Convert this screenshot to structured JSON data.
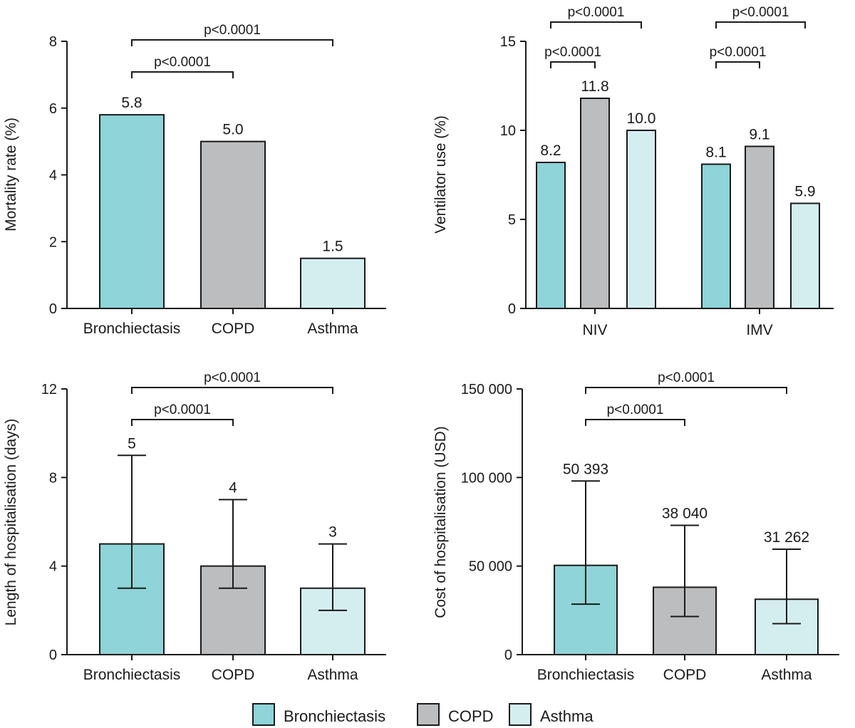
{
  "colors": {
    "Bronchiectasis": "#8ed4d8",
    "COPD": "#bcbdbf",
    "Asthma": "#d4eef0",
    "axis": "#1a1a1a"
  },
  "legend": {
    "position": "bottom-center",
    "items": [
      {
        "label": "Bronchiectasis",
        "color": "#8ed4d8"
      },
      {
        "label": "COPD",
        "color": "#bcbdbf"
      },
      {
        "label": "Asthma",
        "color": "#d4eef0"
      }
    ]
  },
  "chart_data": [
    {
      "id": "mortality",
      "type": "bar",
      "ylabel": "Mortality rate (%)",
      "ylim": [
        0,
        8
      ],
      "yticks": [
        0,
        2,
        4,
        6,
        8
      ],
      "yticklabels": [
        "0",
        "2",
        "4",
        "6",
        "8"
      ],
      "categories": [
        "Bronchiectasis",
        "COPD",
        "Asthma"
      ],
      "values": [
        5.8,
        5.0,
        1.5
      ],
      "value_labels": [
        "5.8",
        "5.0",
        "1.5"
      ],
      "significance": [
        {
          "from": 0,
          "to": 1,
          "label": "p<0.0001"
        },
        {
          "from": 0,
          "to": 2,
          "label": "p<0.0001"
        }
      ]
    },
    {
      "id": "ventilator",
      "type": "bar",
      "ylabel": "Ventilator use (%)",
      "ylim": [
        0,
        15
      ],
      "yticks": [
        0,
        5,
        10,
        15
      ],
      "yticklabels": [
        "0",
        "5",
        "10",
        "15"
      ],
      "categories": [
        "NIV",
        "IMV"
      ],
      "series": [
        {
          "name": "Bronchiectasis",
          "values": [
            8.2,
            8.1
          ],
          "labels": [
            "8.2",
            "8.1"
          ]
        },
        {
          "name": "COPD",
          "values": [
            11.8,
            9.1
          ],
          "labels": [
            "11.8",
            "9.1"
          ]
        },
        {
          "name": "Asthma",
          "values": [
            10.0,
            5.9
          ],
          "labels": [
            "10.0",
            "5.9"
          ]
        }
      ],
      "significance": [
        {
          "group": 0,
          "from": 0,
          "to": 1,
          "label": "p<0.0001"
        },
        {
          "group": 0,
          "from": 0,
          "to": 2,
          "label": "p<0.0001"
        },
        {
          "group": 1,
          "from": 0,
          "to": 1,
          "label": "p<0.0001"
        },
        {
          "group": 1,
          "from": 0,
          "to": 2,
          "label": "p<0.0001"
        }
      ]
    },
    {
      "id": "length",
      "type": "bar",
      "ylabel": "Length of hospitalisation (days)",
      "ylim": [
        0,
        12
      ],
      "yticks": [
        0,
        4,
        8,
        12
      ],
      "yticklabels": [
        "0",
        "4",
        "8",
        "12"
      ],
      "categories": [
        "Bronchiectasis",
        "COPD",
        "Asthma"
      ],
      "values": [
        5,
        4,
        3
      ],
      "value_labels": [
        "5",
        "4",
        "3"
      ],
      "error_bars": [
        [
          3,
          9
        ],
        [
          3,
          7
        ],
        [
          2,
          5
        ]
      ],
      "significance": [
        {
          "from": 0,
          "to": 1,
          "label": "p<0.0001"
        },
        {
          "from": 0,
          "to": 2,
          "label": "p<0.0001"
        }
      ]
    },
    {
      "id": "cost",
      "type": "bar",
      "ylabel": "Cost of hospitalisation (USD)",
      "ylim": [
        0,
        150000
      ],
      "yticks": [
        0,
        50000,
        100000,
        150000
      ],
      "yticklabels": [
        "0",
        "50 000",
        "100 000",
        "150 000"
      ],
      "categories": [
        "Bronchiectasis",
        "COPD",
        "Asthma"
      ],
      "values": [
        50393,
        38040,
        31262
      ],
      "value_labels": [
        "50 393",
        "38 040",
        "31 262"
      ],
      "error_bars": [
        [
          28500,
          98000
        ],
        [
          21500,
          73000
        ],
        [
          17500,
          59500
        ]
      ],
      "significance": [
        {
          "from": 0,
          "to": 1,
          "label": "p<0.0001"
        },
        {
          "from": 0,
          "to": 2,
          "label": "p<0.0001"
        }
      ]
    }
  ]
}
